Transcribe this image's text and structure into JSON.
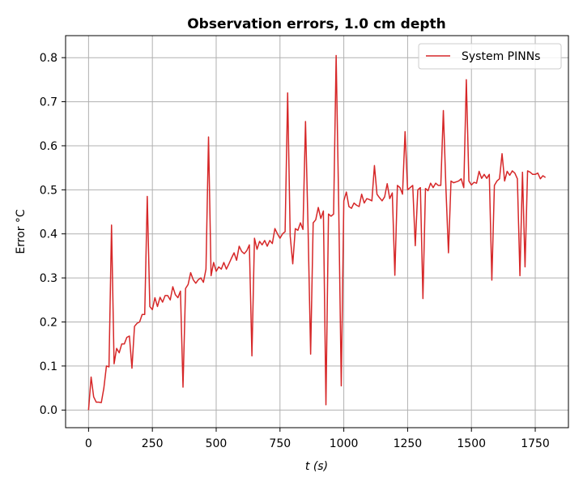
{
  "chart_data": {
    "type": "line",
    "title": "Observation errors, 1.0 cm depth",
    "xlabel": "t (s)",
    "ylabel": "Error °C",
    "xlim": [
      -90,
      1880
    ],
    "ylim": [
      -0.04,
      0.85
    ],
    "xticks": [
      0,
      250,
      500,
      750,
      1000,
      1250,
      1500,
      1750
    ],
    "yticks": [
      0.0,
      0.1,
      0.2,
      0.3,
      0.4,
      0.5,
      0.6,
      0.7,
      0.8
    ],
    "grid": true,
    "legend_position": "top-right",
    "series": [
      {
        "name": "System PINNs",
        "color": "#d62728",
        "x": [
          0,
          10,
          20,
          30,
          40,
          50,
          60,
          70,
          80,
          90,
          100,
          110,
          120,
          130,
          140,
          150,
          160,
          170,
          180,
          190,
          200,
          210,
          220,
          230,
          240,
          250,
          260,
          270,
          280,
          290,
          300,
          310,
          320,
          330,
          340,
          350,
          360,
          370,
          380,
          390,
          400,
          410,
          420,
          430,
          440,
          450,
          460,
          470,
          480,
          490,
          500,
          510,
          520,
          530,
          540,
          550,
          560,
          570,
          580,
          590,
          600,
          610,
          620,
          630,
          640,
          650,
          660,
          670,
          680,
          690,
          700,
          710,
          720,
          730,
          740,
          750,
          760,
          770,
          780,
          790,
          800,
          810,
          820,
          830,
          840,
          850,
          860,
          870,
          880,
          890,
          900,
          910,
          920,
          930,
          940,
          950,
          960,
          970,
          980,
          990,
          1000,
          1010,
          1020,
          1030,
          1040,
          1050,
          1060,
          1070,
          1080,
          1090,
          1100,
          1110,
          1120,
          1130,
          1140,
          1150,
          1160,
          1170,
          1180,
          1190,
          1200,
          1210,
          1220,
          1230,
          1240,
          1250,
          1260,
          1270,
          1280,
          1290,
          1300,
          1310,
          1320,
          1330,
          1340,
          1350,
          1360,
          1370,
          1380,
          1390,
          1400,
          1410,
          1420,
          1430,
          1440,
          1450,
          1460,
          1470,
          1480,
          1490,
          1500,
          1510,
          1520,
          1530,
          1540,
          1550,
          1560,
          1570,
          1580,
          1590,
          1600,
          1610,
          1620,
          1630,
          1640,
          1650,
          1660,
          1670,
          1680,
          1690,
          1700,
          1710,
          1720,
          1730,
          1740,
          1750,
          1760,
          1770,
          1780,
          1790
        ],
        "values": [
          0.0,
          0.075,
          0.03,
          0.018,
          0.018,
          0.017,
          0.05,
          0.1,
          0.098,
          0.42,
          0.105,
          0.14,
          0.13,
          0.15,
          0.15,
          0.165,
          0.168,
          0.095,
          0.19,
          0.197,
          0.2,
          0.217,
          0.217,
          0.485,
          0.235,
          0.228,
          0.255,
          0.235,
          0.256,
          0.245,
          0.26,
          0.26,
          0.25,
          0.28,
          0.262,
          0.255,
          0.27,
          0.052,
          0.276,
          0.285,
          0.312,
          0.296,
          0.288,
          0.296,
          0.3,
          0.29,
          0.32,
          0.62,
          0.305,
          0.335,
          0.315,
          0.325,
          0.32,
          0.335,
          0.32,
          0.332,
          0.345,
          0.357,
          0.34,
          0.372,
          0.36,
          0.355,
          0.362,
          0.375,
          0.123,
          0.39,
          0.365,
          0.383,
          0.375,
          0.385,
          0.372,
          0.385,
          0.378,
          0.412,
          0.4,
          0.39,
          0.4,
          0.405,
          0.72,
          0.395,
          0.332,
          0.412,
          0.408,
          0.425,
          0.41,
          0.655,
          0.412,
          0.127,
          0.425,
          0.432,
          0.46,
          0.435,
          0.452,
          0.012,
          0.445,
          0.44,
          0.445,
          0.805,
          0.465,
          0.055,
          0.475,
          0.495,
          0.462,
          0.458,
          0.47,
          0.465,
          0.462,
          0.49,
          0.47,
          0.48,
          0.478,
          0.475,
          0.555,
          0.49,
          0.482,
          0.475,
          0.484,
          0.514,
          0.48,
          0.493,
          0.306,
          0.51,
          0.505,
          0.49,
          0.632,
          0.5,
          0.505,
          0.51,
          0.373,
          0.5,
          0.505,
          0.253,
          0.503,
          0.498,
          0.515,
          0.505,
          0.515,
          0.51,
          0.51,
          0.68,
          0.505,
          0.357,
          0.52,
          0.516,
          0.518,
          0.52,
          0.525,
          0.505,
          0.75,
          0.52,
          0.511,
          0.517,
          0.515,
          0.542,
          0.526,
          0.535,
          0.526,
          0.535,
          0.295,
          0.51,
          0.52,
          0.525,
          0.582,
          0.52,
          0.542,
          0.533,
          0.543,
          0.538,
          0.525,
          0.305,
          0.54,
          0.325,
          0.543,
          0.54,
          0.535,
          0.535,
          0.538,
          0.525,
          0.532,
          0.528
        ]
      }
    ]
  }
}
